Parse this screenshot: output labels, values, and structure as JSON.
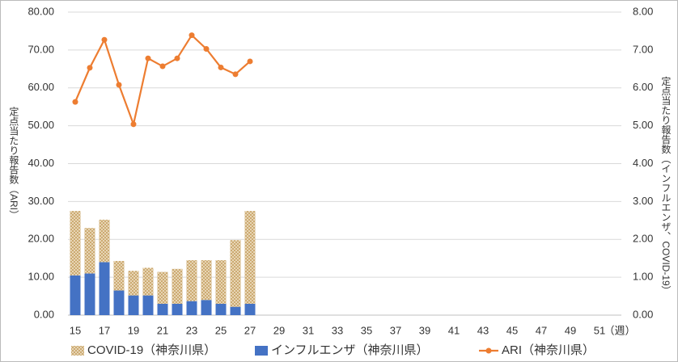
{
  "chart_data": {
    "type": "bar_line",
    "ylabel": "定点当たり報告数（ARI）",
    "y2label": "定点当たり報告数（インフルエンザ、COVID-19）",
    "xlabel": "（週）",
    "categories": [
      15,
      null,
      17,
      null,
      19,
      null,
      21,
      null,
      23,
      null,
      25,
      null,
      27,
      null,
      29,
      null,
      31,
      null,
      33,
      null,
      35,
      null,
      37,
      null,
      39,
      null,
      41,
      null,
      43,
      null,
      45,
      null,
      47,
      null,
      49,
      null,
      51,
      null
    ],
    "ylim": [
      0,
      80
    ],
    "yticks": [
      {
        "value": 0,
        "label": "0.00"
      },
      {
        "value": 10,
        "label": "10.00"
      },
      {
        "value": 20,
        "label": "20.00"
      },
      {
        "value": 30,
        "label": "30.00"
      },
      {
        "value": 40,
        "label": "40.00"
      },
      {
        "value": 50,
        "label": "50.00"
      },
      {
        "value": 60,
        "label": "60.00"
      },
      {
        "value": 70,
        "label": "70.00"
      },
      {
        "value": 80,
        "label": "80.00"
      }
    ],
    "y2lim": [
      0,
      8
    ],
    "y2ticks": [
      {
        "value": 0,
        "label": "0.00"
      },
      {
        "value": 1,
        "label": "1.00"
      },
      {
        "value": 2,
        "label": "2.00"
      },
      {
        "value": 3,
        "label": "3.00"
      },
      {
        "value": 4,
        "label": "4.00"
      },
      {
        "value": 5,
        "label": "5.00"
      },
      {
        "value": 6,
        "label": "6.00"
      },
      {
        "value": 7,
        "label": "7.00"
      },
      {
        "value": 8,
        "label": "8.00"
      }
    ],
    "grid": true,
    "stacked": true,
    "legend": "bottom",
    "series": [
      {
        "name": "COVID-19（神奈川県）",
        "kind": "bar",
        "axis": "y2",
        "pattern": "crosshatch",
        "color": "#c9a66b",
        "stack_order": 1,
        "values": [
          1.7,
          1.2,
          1.12,
          0.78,
          0.65,
          0.73,
          0.84,
          0.92,
          1.08,
          1.05,
          1.15,
          1.76,
          2.45,
          null,
          null,
          null,
          null,
          null,
          null,
          null,
          null,
          null,
          null,
          null,
          null,
          null,
          null,
          null,
          null,
          null,
          null,
          null,
          null,
          null,
          null,
          null,
          null,
          null
        ]
      },
      {
        "name": "インフルエンザ（神奈川県）",
        "kind": "bar",
        "axis": "y2",
        "color": "#4472c4",
        "stack_order": 0,
        "values": [
          1.05,
          1.1,
          1.4,
          0.65,
          0.52,
          0.52,
          0.3,
          0.3,
          0.37,
          0.4,
          0.3,
          0.22,
          0.3,
          null,
          null,
          null,
          null,
          null,
          null,
          null,
          null,
          null,
          null,
          null,
          null,
          null,
          null,
          null,
          null,
          null,
          null,
          null,
          null,
          null,
          null,
          null,
          null,
          null
        ]
      },
      {
        "name": "ARI（神奈川県）",
        "kind": "line",
        "color": "#ed7d31",
        "values": [
          56.3,
          65.3,
          72.7,
          60.8,
          50.4,
          67.8,
          65.7,
          67.8,
          73.9,
          70.3,
          65.4,
          63.6,
          67.0,
          null,
          null,
          null,
          null,
          null,
          null,
          null,
          null,
          null,
          null,
          null,
          null,
          null,
          null,
          null,
          null,
          null,
          null,
          null,
          null,
          null,
          null,
          null,
          null,
          null
        ]
      }
    ]
  }
}
